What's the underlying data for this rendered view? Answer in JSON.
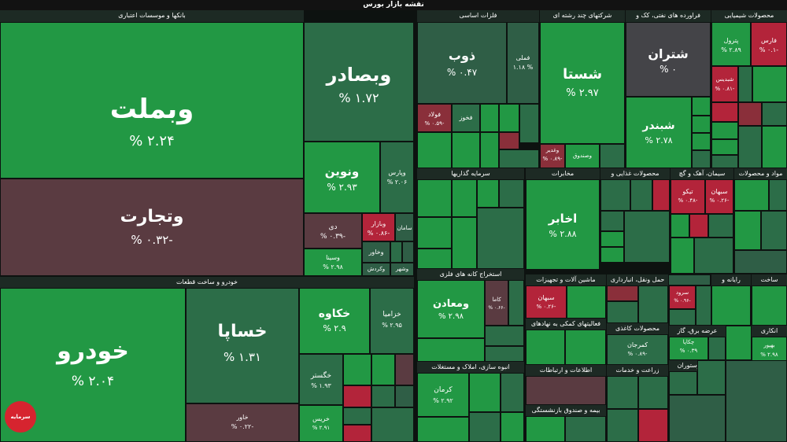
{
  "title": "نقشه بازار بورس",
  "sectors": {
    "banks": "بانکها و موسسات اعتباری",
    "basic_metals": "فلزات اساسی",
    "multi": "شرکتهای چند رشته ای",
    "oil": "فراورده های نفتی، کک و",
    "chem": "محصولات شیمیایی",
    "auto": "خودرو و ساخت قطعات",
    "invest": "سرمایه گذاریها",
    "mining": "استخراج کانه های فلزی",
    "telecom": "مخابرات",
    "food": "محصولات غذایی و",
    "cement": "سیمان، آهک و گچ",
    "drugs": "مواد و محصولات",
    "machinery": "ماشین آلات و تجهیزات",
    "transport": "حمل ونقل، انبارداری",
    "computer": "رایانه و",
    "construction": "ساخت",
    "finance": "فعالیتهای کمکی به نهادهای",
    "paper": "محصولات کاغذی",
    "utilities": "عرضه برق، گاز",
    "insurance": "بیمه و صندوق بازنشستگی",
    "info": "اطلاعات و ارتباطات",
    "agri": "زراعت و خدمات",
    "hotel": "هتل و رستوران",
    "nonmetal": "انبوه سازی، املاک و مستغلات",
    "misc": "انکاری"
  },
  "tiles": [
    {
      "id": "vbmellat",
      "name": "وبملت",
      "pct": "% ۲.۲۴",
      "color": "g2"
    },
    {
      "id": "vtejarat",
      "name": "وتجارت",
      "pct": "% ۰.۳۲-",
      "color": "r3"
    },
    {
      "id": "vbsader",
      "name": "وبصادر",
      "pct": "% ۱.۷۲",
      "color": "g3"
    },
    {
      "id": "vnovin",
      "name": "ونوین",
      "pct": "% ۲.۹۳",
      "color": "g2"
    },
    {
      "id": "vparis",
      "name": "وپارس",
      "pct": "% ۲.۰۶",
      "color": "g3"
    },
    {
      "id": "di",
      "name": "دی",
      "pct": "% ۰.۳۹-",
      "color": "r3"
    },
    {
      "id": "vbazar",
      "name": "وبازار",
      "pct": "% ۰.۸۶-",
      "color": "r1"
    },
    {
      "id": "saman",
      "name": "سامان",
      "pct": "",
      "color": "g4"
    },
    {
      "id": "vsina",
      "name": "وسینا",
      "pct": "% ۲.۹۸",
      "color": "g2"
    },
    {
      "id": "vkhavar",
      "name": "وخاور",
      "pct": "",
      "color": "g4"
    },
    {
      "id": "vkardan",
      "name": "وکردش",
      "pct": "",
      "color": "g4"
    },
    {
      "id": "vshahr",
      "name": "وشهر",
      "pct": "",
      "color": "g4"
    },
    {
      "id": "zob",
      "name": "ذوب",
      "pct": "% ۰.۴۷",
      "color": "g4"
    },
    {
      "id": "fameli",
      "name": "فملی",
      "pct": "۱.۱۸ %",
      "color": "g4"
    },
    {
      "id": "foolad",
      "name": "فولاد",
      "pct": "% ۰.۵۹-",
      "color": "r2"
    },
    {
      "id": "fkhooz",
      "name": "فخوز",
      "pct": "",
      "color": "g3"
    },
    {
      "id": "shasta",
      "name": "شستا",
      "pct": "% ۲.۹۷",
      "color": "g2"
    },
    {
      "id": "vghadir",
      "name": "وغدیر",
      "pct": "% ۰.۸۹-",
      "color": "r2"
    },
    {
      "id": "vsandogh",
      "name": "وصندوق",
      "pct": "",
      "color": "g2"
    },
    {
      "id": "shetran",
      "name": "شتران",
      "pct": "% ۰",
      "color": "n1"
    },
    {
      "id": "shbandar",
      "name": "شبندر",
      "pct": "% ۲.۷۸",
      "color": "g2"
    },
    {
      "id": "petrol",
      "name": "پترول",
      "pct": "% ۲.۸۹",
      "color": "g2"
    },
    {
      "id": "fars",
      "name": "فارس",
      "pct": "% ۰.۱-",
      "color": "r1"
    },
    {
      "id": "shabdis",
      "name": "شبدیس",
      "pct": "% ۰.۸۱-",
      "color": "r1"
    },
    {
      "id": "khodro",
      "name": "خودرو",
      "pct": "% ۲.۰۴",
      "color": "g2"
    },
    {
      "id": "khsapa",
      "name": "خساپا",
      "pct": "% ۱.۳۱",
      "color": "g3"
    },
    {
      "id": "khkaveh",
      "name": "خکاوه",
      "pct": "% ۲.۹",
      "color": "g2"
    },
    {
      "id": "khzamia",
      "name": "خزامیا",
      "pct": "% ۲.۹۵",
      "color": "g3"
    },
    {
      "id": "khgostar",
      "name": "خگستر",
      "pct": "% ۱.۹۳",
      "color": "g3"
    },
    {
      "id": "khavar",
      "name": "خاور",
      "pct": "% ۰.۲۲-",
      "color": "r3"
    },
    {
      "id": "khiras",
      "name": "خریس",
      "pct": "% ۲.۹۱",
      "color": "g2"
    },
    {
      "id": "vamaden",
      "name": "ومعادن",
      "pct": "% ۲.۹۸",
      "color": "g2"
    },
    {
      "id": "kama",
      "name": "کاما",
      "pct": "% ۰.۶۶-",
      "color": "r3"
    },
    {
      "id": "akhaber",
      "name": "اخابر",
      "pct": "% ۲.۸۸",
      "color": "g2"
    },
    {
      "id": "kerman",
      "name": "کرمان",
      "pct": "% ۲.۹۲",
      "color": "g2"
    },
    {
      "id": "tikoo",
      "name": "تیکو",
      "pct": "% ۰.۴۸-",
      "color": "r1"
    },
    {
      "id": "sebhan",
      "name": "سبهان",
      "pct": "% ۰.۲۶-",
      "color": "r1"
    },
    {
      "id": "sorood",
      "name": "سرود",
      "pct": "% ۰.۹۶-",
      "color": "r1"
    },
    {
      "id": "kimgan",
      "name": "کمرجان",
      "pct": "% ۰.۸۹-",
      "color": "r1"
    },
    {
      "id": "chkapa",
      "name": "چکاپا",
      "pct": "% ۰.۳۹",
      "color": "g3"
    },
    {
      "id": "bbahman",
      "name": "بهپور",
      "pct": "% ۲.۹۸",
      "color": "g2"
    },
    {
      "id": "kesran",
      "name": "کسرا",
      "pct": "% ۲.۹۳",
      "color": "g2"
    }
  ],
  "colors": {
    "green_strong": "#229844",
    "green_dark": "#2c6d48",
    "red_strong": "#b3243a",
    "red_dark": "#5a3b41",
    "bg": "#0d1210"
  },
  "logo_text": "سرمایه"
}
